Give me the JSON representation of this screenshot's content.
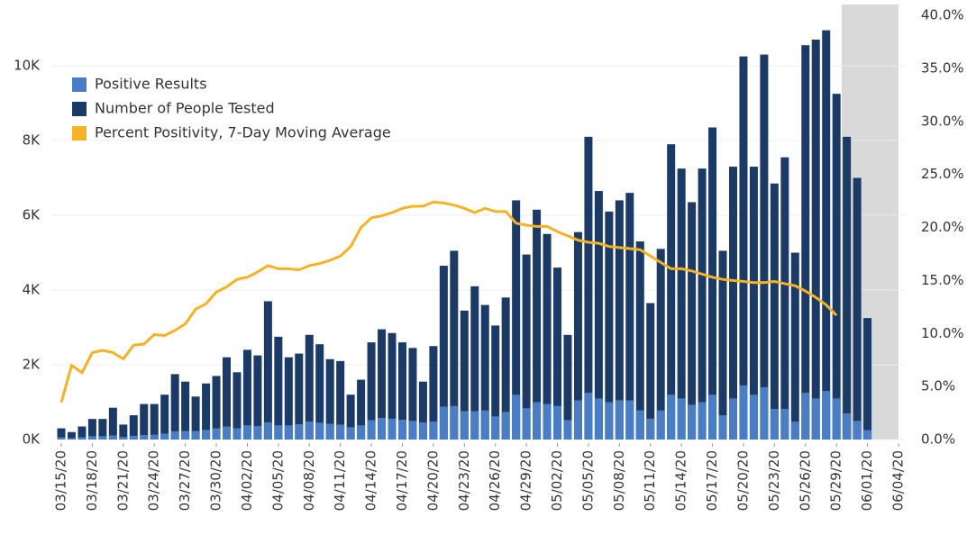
{
  "chart_data": {
    "type": "bar",
    "categories": [
      "03/15/20",
      null,
      null,
      "03/18/20",
      null,
      null,
      "03/21/20",
      null,
      null,
      "03/24/20",
      null,
      null,
      "03/27/20",
      null,
      null,
      "03/30/20",
      null,
      null,
      "04/02/20",
      null,
      null,
      "04/05/20",
      null,
      null,
      "04/08/20",
      null,
      null,
      "04/11/20",
      null,
      null,
      "04/14/20",
      null,
      null,
      "04/17/20",
      null,
      null,
      "04/20/20",
      null,
      null,
      "04/23/20",
      null,
      null,
      "04/26/20",
      null,
      null,
      "04/29/20",
      null,
      null,
      "05/02/20",
      null,
      null,
      "05/05/20",
      null,
      null,
      "05/08/20",
      null,
      null,
      "05/11/20",
      null,
      null,
      "05/14/20",
      null,
      null,
      "05/17/20",
      null,
      null,
      "05/20/20",
      null,
      null,
      "05/23/20",
      null,
      null,
      "05/26/20",
      null,
      null,
      "05/29/20",
      null,
      null,
      "06/01/20",
      null,
      null,
      "06/04/20"
    ],
    "series": [
      {
        "name": "Number of People Tested",
        "color": "#1b3a66",
        "values": [
          300,
          200,
          350,
          550,
          550,
          850,
          400,
          650,
          950,
          950,
          1200,
          1750,
          1550,
          1150,
          1500,
          1700,
          2200,
          1800,
          2400,
          2250,
          3700,
          2750,
          2200,
          2300,
          2800,
          2550,
          2150,
          2100,
          1200,
          1600,
          2600,
          2950,
          2850,
          2600,
          2450,
          1550,
          2500,
          4650,
          5050,
          3450,
          4100,
          3600,
          3050,
          3800,
          6400,
          4950,
          6150,
          5500,
          4600,
          2800,
          5550,
          8100,
          6650,
          6100,
          6400,
          6600,
          5300,
          3650,
          5100,
          7900,
          7250,
          6350,
          7250,
          8350,
          5050,
          7300,
          10250,
          7300,
          10300,
          6850,
          7550,
          5000,
          10550,
          10700,
          10950,
          9250,
          8100,
          7000,
          3250,
          null,
          null,
          null
        ]
      },
      {
        "name": "Positive Results",
        "color": "#4a7ec4",
        "values": [
          60,
          40,
          60,
          90,
          90,
          110,
          70,
          100,
          120,
          130,
          160,
          220,
          230,
          230,
          260,
          300,
          350,
          300,
          380,
          360,
          460,
          380,
          380,
          410,
          480,
          450,
          420,
          400,
          330,
          380,
          520,
          580,
          560,
          530,
          500,
          460,
          480,
          880,
          900,
          760,
          760,
          780,
          620,
          740,
          1200,
          840,
          1000,
          950,
          900,
          520,
          1050,
          1250,
          1100,
          1000,
          1050,
          1050,
          780,
          560,
          780,
          1200,
          1100,
          930,
          1000,
          1200,
          650,
          1100,
          1450,
          1200,
          1400,
          820,
          820,
          480,
          1250,
          1100,
          1300,
          1100,
          700,
          500,
          250,
          null,
          null,
          null
        ]
      },
      {
        "name": "Percent Positivity, 7-Day Moving Average",
        "color": "#f5b324",
        "axis": "y2",
        "kind": "line",
        "values": [
          3.5,
          7.0,
          6.3,
          8.2,
          8.4,
          8.2,
          7.6,
          8.9,
          9.0,
          9.9,
          9.8,
          10.3,
          10.9,
          12.3,
          12.8,
          13.9,
          14.4,
          15.1,
          15.3,
          15.8,
          16.4,
          16.1,
          16.1,
          16.0,
          16.4,
          16.6,
          16.9,
          17.3,
          18.2,
          20.0,
          20.9,
          21.1,
          21.4,
          21.8,
          22.0,
          22.0,
          22.4,
          22.3,
          22.1,
          21.8,
          21.4,
          21.8,
          21.5,
          21.5,
          20.4,
          20.2,
          20.1,
          20.1,
          19.6,
          19.2,
          18.8,
          18.6,
          18.5,
          18.2,
          18.1,
          18.0,
          17.9,
          17.3,
          16.7,
          16.1,
          16.1,
          15.9,
          15.6,
          15.3,
          15.1,
          15.0,
          14.9,
          14.8,
          14.8,
          14.9,
          14.7,
          14.5,
          14.0,
          13.4,
          12.7,
          11.7,
          null,
          null,
          null,
          null,
          null,
          null
        ]
      }
    ],
    "legend_order": [
      1,
      0,
      2
    ],
    "shaded_from_index": 76,
    "ylim": [
      0,
      11350
    ],
    "yticks": [
      {
        "value": 0,
        "label": "0K"
      },
      {
        "value": 2000,
        "label": "2K"
      },
      {
        "value": 4000,
        "label": "4K"
      },
      {
        "value": 6000,
        "label": "6K"
      },
      {
        "value": 8000,
        "label": "8K"
      },
      {
        "value": 10000,
        "label": "10K"
      }
    ],
    "y2lim": [
      0,
      40
    ],
    "y2ticks": [
      {
        "value": 0,
        "label": "0.0%"
      },
      {
        "value": 5,
        "label": "5.0%"
      },
      {
        "value": 10,
        "label": "10.0%"
      },
      {
        "value": 15,
        "label": "15.0%"
      },
      {
        "value": 20,
        "label": "20.0%"
      },
      {
        "value": 25,
        "label": "25.0%"
      },
      {
        "value": 30,
        "label": "30.0%"
      },
      {
        "value": 35,
        "label": "35.0%"
      },
      {
        "value": 40,
        "label": "40.0%"
      }
    ],
    "grid": true,
    "legend": "upper left"
  }
}
